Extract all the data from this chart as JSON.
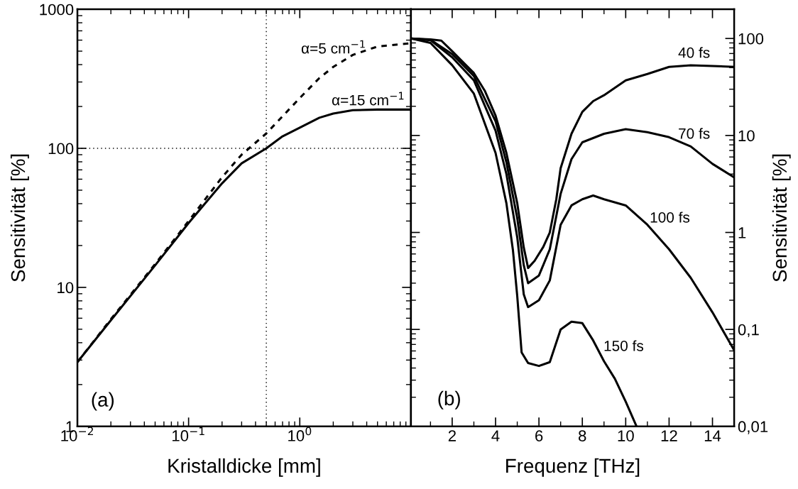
{
  "chart_data": [
    {
      "type": "line",
      "xlabel": "Kristalldicke [mm]",
      "ylabel": "Sensitivität [%]",
      "log": "xy",
      "xlim": [
        0.01,
        10
      ],
      "xticks": [
        {
          "value": 0.01,
          "label": "10$^{−2}$"
        },
        {
          "value": 0.1,
          "label": "10$^{−1}$"
        },
        {
          "value": 1,
          "label": "10$^{0}$"
        }
      ],
      "ylim": [
        1,
        1000
      ],
      "yticks": [
        1,
        10,
        100,
        1000
      ],
      "series": [
        {
          "color": "#000000",
          "line_style": "dashed",
          "x": [
            0.01,
            0.02,
            0.05,
            0.1,
            0.2,
            0.3,
            0.5,
            0.7,
            1,
            1.5,
            2,
            3,
            5,
            10
          ],
          "values": [
            2.9,
            5.9,
            14.7,
            30,
            62,
            90,
            128,
            170,
            230,
            320,
            385,
            470,
            540,
            570
          ]
        },
        {
          "color": "#000000",
          "line_style": "solid",
          "x": [
            0.01,
            0.02,
            0.05,
            0.1,
            0.2,
            0.3,
            0.5,
            0.7,
            1,
            1.5,
            2,
            3,
            5,
            10
          ],
          "values": [
            2.9,
            5.8,
            14.4,
            29,
            56,
            78,
            100,
            122,
            141,
            166,
            178,
            188,
            190,
            190
          ]
        }
      ],
      "ref_lines": [
        {
          "axis": "x",
          "value": 0.5,
          "line_style": "dotted",
          "color": "#000000"
        },
        {
          "axis": "y",
          "value": 100,
          "line_style": "dotted",
          "color": "#000000"
        }
      ],
      "annotations": [
        "α=5 cm$^{−1}$",
        "α=15 cm$^{−1}$",
        "(a)"
      ]
    },
    {
      "type": "line",
      "xlabel": "Frequenz [THz]",
      "y2label": "Sensitivität [%]",
      "log": "y2",
      "xlim": [
        0.1,
        15
      ],
      "xticks": [
        2,
        4,
        6,
        8,
        10,
        12,
        14
      ],
      "y2lim": [
        0.01,
        200
      ],
      "y2ticks": [
        100,
        10,
        1,
        {
          "value": 0.1,
          "label": "0,1"
        },
        {
          "value": 0.01,
          "label": "0,01"
        }
      ],
      "series": [
        {
          "color": "#000000",
          "axis": "y2",
          "x": [
            0.1,
            1,
            1.5,
            2,
            2.5,
            3,
            3.5,
            4,
            4.5,
            5,
            5.3,
            5.5,
            5.8,
            6.2,
            6.5,
            6.8,
            7,
            7.5,
            8,
            8.5,
            9,
            10,
            11,
            12,
            13,
            14,
            15
          ],
          "values": [
            100,
            98,
            95,
            74,
            57,
            44,
            29,
            16,
            6.6,
            2.0,
            0.7,
            0.43,
            0.51,
            0.71,
            1.0,
            2.2,
            4.6,
            10.4,
            17.5,
            22.6,
            26,
            37,
            43,
            51,
            53,
            52,
            51
          ]
        },
        {
          "color": "#000000",
          "axis": "y2",
          "x": [
            0.1,
            1,
            2,
            3,
            4,
            4.5,
            5,
            5.3,
            5.5,
            6,
            6.5,
            7,
            7.5,
            8,
            9,
            10,
            11,
            12,
            13,
            14,
            15
          ],
          "values": [
            100,
            97,
            69,
            41,
            14,
            5.3,
            1.4,
            0.46,
            0.3,
            0.36,
            0.67,
            2.5,
            5.7,
            8.5,
            10.4,
            11.6,
            10.8,
            9.6,
            7.7,
            5.1,
            3.7
          ]
        },
        {
          "color": "#000000",
          "axis": "y2",
          "x": [
            0.1,
            1,
            2,
            3,
            4,
            4.5,
            5,
            5.3,
            5.5,
            6,
            6.5,
            7,
            7.5,
            8,
            8.5,
            9,
            10,
            11,
            12,
            13,
            14,
            15
          ],
          "values": [
            100,
            96,
            64,
            37,
            11.2,
            4.0,
            0.89,
            0.23,
            0.17,
            0.2,
            0.32,
            1.2,
            1.9,
            2.2,
            2.4,
            2.2,
            1.9,
            1.2,
            0.67,
            0.34,
            0.15,
            0.061
          ]
        },
        {
          "color": "#000000",
          "axis": "y2",
          "x": [
            0.1,
            1,
            2,
            3,
            4,
            4.5,
            4.8,
            5,
            5.2,
            5.5,
            6,
            6.5,
            7,
            7.5,
            8,
            8.5,
            9,
            9.5,
            10,
            10.5
          ],
          "values": [
            100,
            90,
            53,
            27,
            6.6,
            2.0,
            0.66,
            0.22,
            0.058,
            0.045,
            0.042,
            0.046,
            0.1,
            0.12,
            0.116,
            0.077,
            0.047,
            0.031,
            0.018,
            0.01
          ]
        }
      ],
      "annotations": [
        "40 fs",
        "70 fs",
        "100 fs",
        "150 fs",
        "(b)"
      ]
    }
  ]
}
